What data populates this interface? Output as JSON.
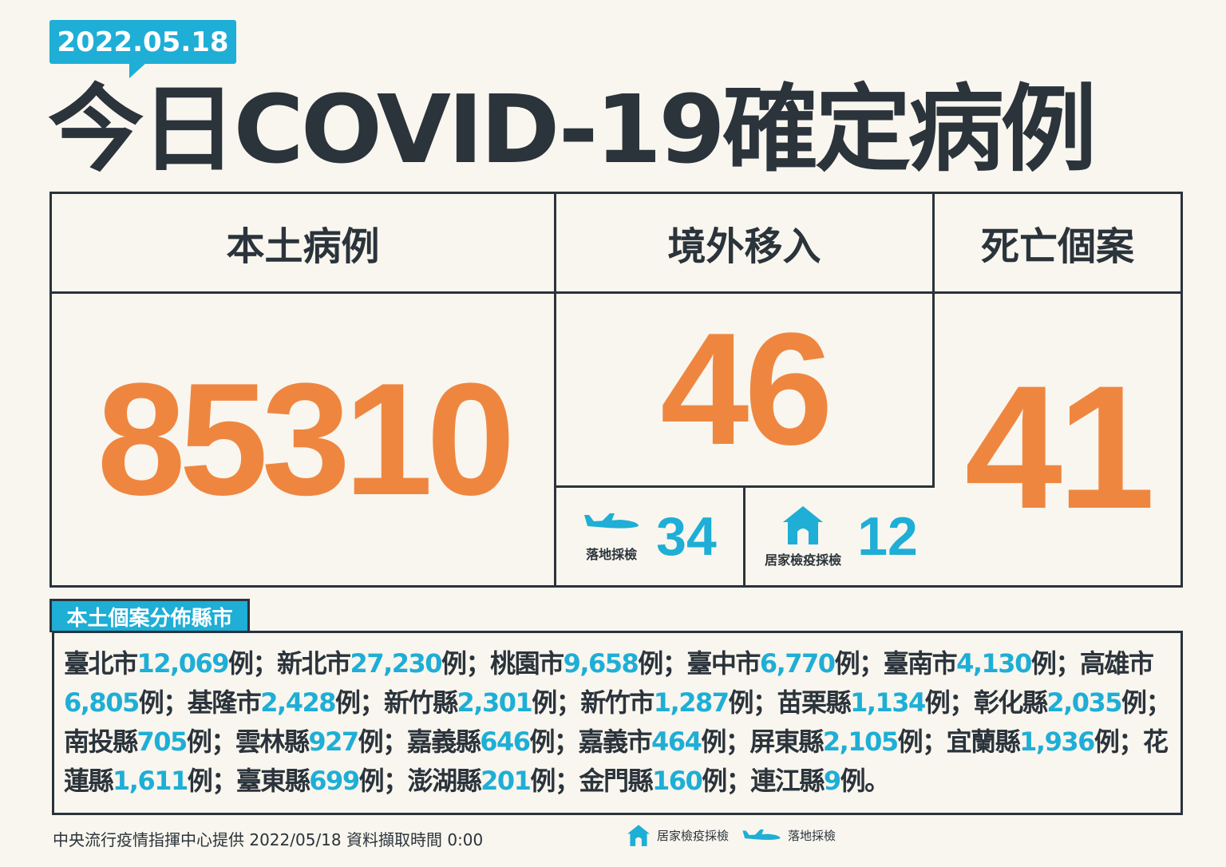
{
  "date": "2022.05.18",
  "title": "今日COVID-19確定病例",
  "colors": {
    "accent": "#1eaed6",
    "number": "#ef8640",
    "text": "#2b333b",
    "background": "#f8f6ee"
  },
  "local": {
    "label": "本土病例",
    "value": "85310"
  },
  "imported": {
    "label": "境外移入",
    "value": "46",
    "airport": {
      "label": "落地採檢",
      "value": "34",
      "icon": "airplane-icon"
    },
    "quarantine": {
      "label": "居家檢疫採檢",
      "value": "12",
      "icon": "house-icon"
    }
  },
  "deaths": {
    "label": "死亡個案",
    "value": "41"
  },
  "distribution": {
    "label": "本土個案分佈縣市",
    "unit": "例",
    "sep": "；",
    "end": "。",
    "items": [
      {
        "city": "臺北市",
        "count": "12,069"
      },
      {
        "city": "新北市",
        "count": "27,230"
      },
      {
        "city": "桃園市",
        "count": "9,658"
      },
      {
        "city": "臺中市",
        "count": "6,770"
      },
      {
        "city": "臺南市",
        "count": "4,130"
      },
      {
        "city": "高雄市",
        "count": "6,805"
      },
      {
        "city": "基隆市",
        "count": "2,428"
      },
      {
        "city": "新竹縣",
        "count": "2,301"
      },
      {
        "city": "新竹市",
        "count": "1,287"
      },
      {
        "city": "苗栗縣",
        "count": "1,134"
      },
      {
        "city": "彰化縣",
        "count": "2,035"
      },
      {
        "city": "南投縣",
        "count": "705"
      },
      {
        "city": "雲林縣",
        "count": "927"
      },
      {
        "city": "嘉義縣",
        "count": "646"
      },
      {
        "city": "嘉義市",
        "count": "464"
      },
      {
        "city": "屏東縣",
        "count": "2,105"
      },
      {
        "city": "宜蘭縣",
        "count": "1,936"
      },
      {
        "city": "花蓮縣",
        "count": "1,611"
      },
      {
        "city": "臺東縣",
        "count": "699"
      },
      {
        "city": "澎湖縣",
        "count": "201"
      },
      {
        "city": "金門縣",
        "count": "160"
      },
      {
        "city": "連江縣",
        "count": "9"
      }
    ]
  },
  "footer": {
    "source": "中央流行疫情指揮中心提供 2022/05/18 資料擷取時間 0:00",
    "legend_quarantine": "居家檢疫採檢",
    "legend_airport": "落地採檢"
  }
}
